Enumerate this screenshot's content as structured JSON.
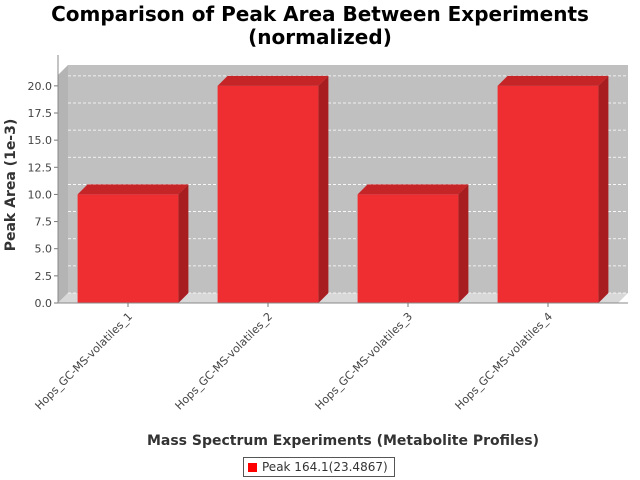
{
  "chart_data": {
    "type": "bar",
    "title_lines": [
      "Comparison of Peak Area Between Experiments",
      "(normalized)"
    ],
    "xlabel": "Mass Spectrum Experiments (Metabolite Profiles)",
    "ylabel": "Peak Area (1e-3)",
    "categories": [
      "Hops_GC-MS-volatiles_1",
      "Hops_GC-MS-volatiles_2",
      "Hops_GC-MS-volatiles_3",
      "Hops_GC-MS-volatiles_4"
    ],
    "series": [
      {
        "name": "Peak 164.1(23.4867)",
        "values": [
          10.0,
          20.0,
          10.0,
          20.0
        ],
        "color": "#ee2e31"
      }
    ],
    "ylim": [
      0,
      21
    ],
    "yticks": [
      "0.0",
      "2.5",
      "5.0",
      "7.5",
      "10.0",
      "12.5",
      "15.0",
      "17.5",
      "20.0"
    ],
    "grid": true,
    "legend_position": "bottom",
    "plot_background": "#c0c0c0"
  }
}
